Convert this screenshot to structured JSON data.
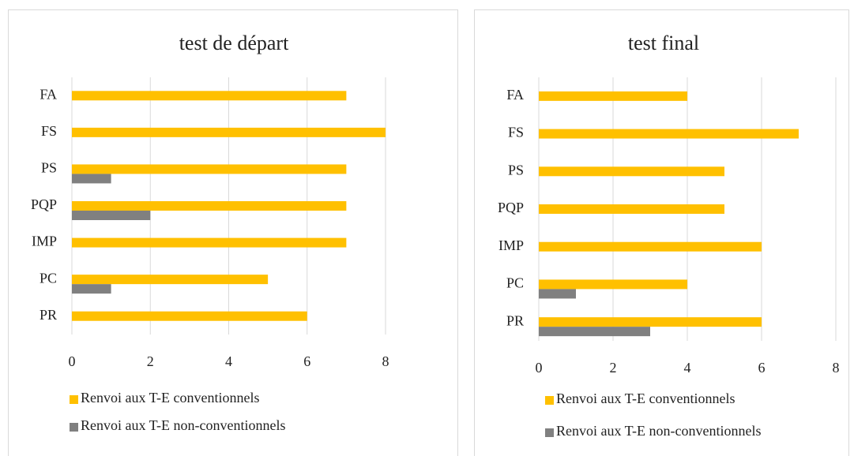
{
  "chart_data": [
    {
      "type": "bar",
      "orientation": "horizontal",
      "title": "test de départ",
      "categories": [
        "FA",
        "FS",
        "PS",
        "PQP",
        "IMP",
        "PC",
        "PR"
      ],
      "series": [
        {
          "name": "Renvoi aux T-E conventionnels",
          "color": "#ffc000",
          "values": [
            7,
            8,
            7,
            7,
            7,
            5,
            6
          ]
        },
        {
          "name": "Renvoi aux T-E non-conventionnels",
          "color": "#808080",
          "values": [
            0,
            0,
            1,
            2,
            0,
            1,
            0
          ]
        }
      ],
      "xlim": [
        0,
        8
      ],
      "xticks": [
        0,
        2,
        4,
        6,
        8
      ],
      "grid": true,
      "legend": "bottom"
    },
    {
      "type": "bar",
      "orientation": "horizontal",
      "title": "test final",
      "categories": [
        "FA",
        "FS",
        "PS",
        "PQP",
        "IMP",
        "PC",
        "PR"
      ],
      "series": [
        {
          "name": "Renvoi aux T-E conventionnels",
          "color": "#ffc000",
          "values": [
            4,
            7,
            5,
            5,
            6,
            4,
            6
          ]
        },
        {
          "name": "Renvoi aux T-E non-conventionnels",
          "color": "#808080",
          "values": [
            0,
            0,
            0,
            0,
            0,
            1,
            3
          ]
        }
      ],
      "xlim": [
        0,
        8
      ],
      "xticks": [
        0,
        2,
        4,
        6,
        8
      ],
      "grid": true,
      "legend": "bottom"
    }
  ]
}
